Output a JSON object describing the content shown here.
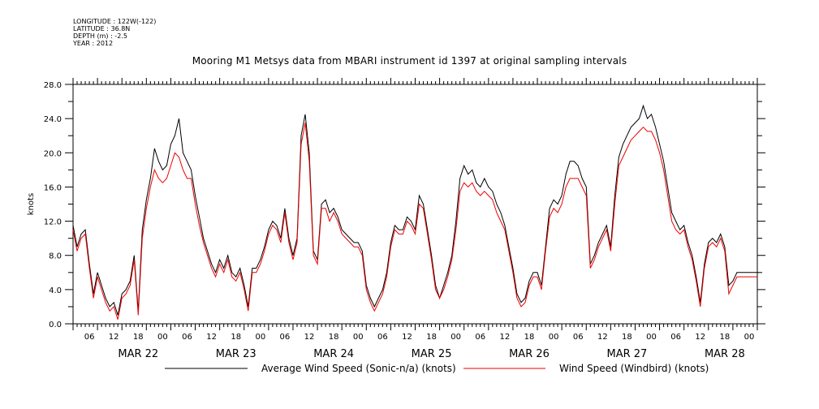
{
  "meta": {
    "longitude": "LONGITUDE : 122W(-122)",
    "latitude": "LATITUDE : 36.8N",
    "depth": "DEPTH (m) : -2.5",
    "year": "YEAR : 2012"
  },
  "chart_data": {
    "type": "line",
    "title": "Mooring M1 Metsys data from MBARI instrument id 1397 at original sampling intervals",
    "ylabel": "knots",
    "xlabel": "",
    "ylim": [
      0,
      28
    ],
    "yticks": [
      "0.0",
      "4.0",
      "8.0",
      "12.0",
      "16.0",
      "20.0",
      "24.0",
      "28.0"
    ],
    "xlim_hours": [
      0,
      168
    ],
    "hour_ticks": [
      "06",
      "12",
      "18",
      "00",
      "06",
      "12",
      "18",
      "00",
      "06",
      "12",
      "18",
      "00",
      "06",
      "12",
      "18",
      "00",
      "06",
      "12",
      "18",
      "00",
      "06",
      "12",
      "18",
      "00",
      "06",
      "12",
      "18",
      "00"
    ],
    "day_labels": [
      "MAR 22",
      "MAR 23",
      "MAR 24",
      "MAR 25",
      "MAR 26",
      "MAR 27",
      "MAR 28"
    ],
    "grid": false,
    "legend_position": "bottom",
    "series": [
      {
        "name": "Average Wind Speed (Sonic-n/a) (knots)",
        "color": "#000000",
        "x": [
          0,
          1,
          2,
          3,
          4,
          5,
          6,
          7,
          8,
          9,
          10,
          11,
          12,
          13,
          14,
          15,
          16,
          17,
          18,
          19,
          20,
          21,
          22,
          23,
          24,
          25,
          26,
          27,
          28,
          29,
          30,
          31,
          32,
          33,
          34,
          35,
          36,
          37,
          38,
          39,
          40,
          41,
          42,
          43,
          44,
          45,
          46,
          47,
          48,
          49,
          50,
          51,
          52,
          53,
          54,
          55,
          56,
          57,
          58,
          59,
          60,
          61,
          62,
          63,
          64,
          65,
          66,
          67,
          68,
          69,
          70,
          71,
          72,
          73,
          74,
          75,
          76,
          77,
          78,
          79,
          80,
          81,
          82,
          83,
          84,
          85,
          86,
          87,
          88,
          89,
          90,
          91,
          92,
          93,
          94,
          95,
          96,
          97,
          98,
          99,
          100,
          101,
          102,
          103,
          104,
          105,
          106,
          107,
          108,
          109,
          110,
          111,
          112,
          113,
          114,
          115,
          116,
          117,
          118,
          119,
          120,
          121,
          122,
          123,
          124,
          125,
          126,
          127,
          128,
          129,
          130,
          131,
          132,
          133,
          134,
          135,
          136,
          137,
          138,
          139,
          140,
          141,
          142,
          143,
          144,
          145,
          146,
          147,
          148,
          149,
          150,
          151,
          152,
          153,
          154,
          155,
          156,
          157,
          158,
          159,
          160,
          161,
          162,
          163,
          164,
          165,
          166,
          167,
          168
        ],
        "values": [
          11.5,
          9.0,
          10.5,
          11.0,
          7.0,
          3.5,
          6.0,
          4.5,
          3.0,
          2.0,
          2.5,
          1.0,
          3.5,
          4.0,
          5.0,
          8.0,
          1.5,
          11.0,
          14.5,
          17.0,
          20.5,
          19.0,
          18.0,
          18.5,
          21.0,
          22.0,
          24.0,
          20.0,
          19.0,
          18.0,
          15.0,
          12.5,
          10.0,
          8.5,
          7.0,
          6.0,
          7.5,
          6.5,
          8.0,
          6.0,
          5.5,
          6.5,
          4.5,
          2.0,
          6.5,
          6.5,
          7.5,
          9.0,
          11.0,
          12.0,
          11.5,
          10.0,
          13.5,
          10.0,
          8.0,
          10.0,
          22.0,
          24.5,
          20.0,
          8.5,
          7.5,
          14.0,
          14.5,
          13.0,
          13.5,
          12.5,
          11.0,
          10.5,
          10.0,
          9.5,
          9.5,
          8.5,
          4.5,
          3.0,
          2.0,
          3.0,
          4.0,
          6.0,
          9.5,
          11.5,
          11.0,
          11.0,
          12.5,
          12.0,
          11.0,
          15.0,
          14.0,
          11.0,
          8.0,
          4.5,
          3.0,
          4.5,
          6.0,
          8.0,
          12.0,
          17.0,
          18.5,
          17.5,
          18.0,
          16.5,
          16.0,
          17.0,
          16.0,
          15.5,
          14.0,
          13.0,
          11.5,
          9.0,
          6.5,
          3.5,
          2.5,
          3.0,
          5.0,
          6.0,
          6.0,
          4.5,
          9.0,
          13.5,
          14.5,
          14.0,
          15.0,
          17.5,
          19.0,
          19.0,
          18.5,
          17.0,
          16.0,
          7.0,
          8.0,
          9.5,
          10.5,
          11.5,
          9.0,
          15.0,
          19.5,
          21.0,
          22.0,
          23.0,
          23.5,
          24.0,
          25.5,
          24.0,
          24.5,
          23.0,
          21.0,
          19.0,
          16.0,
          13.0,
          12.0,
          11.0,
          11.5,
          9.5,
          8.0,
          5.5,
          2.5,
          7.0,
          9.5,
          10.0,
          9.5,
          10.5,
          9.0,
          4.5,
          5.0,
          6.0,
          6.0,
          6.0,
          6.0,
          6.0,
          6.0
        ]
      },
      {
        "name": "Wind Speed (Windbird) (knots)",
        "color": "#ee0000",
        "x": [
          0,
          1,
          2,
          3,
          4,
          5,
          6,
          7,
          8,
          9,
          10,
          11,
          12,
          13,
          14,
          15,
          16,
          17,
          18,
          19,
          20,
          21,
          22,
          23,
          24,
          25,
          26,
          27,
          28,
          29,
          30,
          31,
          32,
          33,
          34,
          35,
          36,
          37,
          38,
          39,
          40,
          41,
          42,
          43,
          44,
          45,
          46,
          47,
          48,
          49,
          50,
          51,
          52,
          53,
          54,
          55,
          56,
          57,
          58,
          59,
          60,
          61,
          62,
          63,
          64,
          65,
          66,
          67,
          68,
          69,
          70,
          71,
          72,
          73,
          74,
          75,
          76,
          77,
          78,
          79,
          80,
          81,
          82,
          83,
          84,
          85,
          86,
          87,
          88,
          89,
          90,
          91,
          92,
          93,
          94,
          95,
          96,
          97,
          98,
          99,
          100,
          101,
          102,
          103,
          104,
          105,
          106,
          107,
          108,
          109,
          110,
          111,
          112,
          113,
          114,
          115,
          116,
          117,
          118,
          119,
          120,
          121,
          122,
          123,
          124,
          125,
          126,
          127,
          128,
          129,
          130,
          131,
          132,
          133,
          134,
          135,
          136,
          137,
          138,
          139,
          140,
          141,
          142,
          143,
          144,
          145,
          146,
          147,
          148,
          149,
          150,
          151,
          152,
          153,
          154,
          155,
          156,
          157,
          158,
          159,
          160,
          161,
          162,
          163,
          164,
          165,
          166,
          167,
          168
        ],
        "values": [
          11.0,
          8.5,
          10.0,
          10.5,
          6.5,
          3.0,
          5.5,
          4.0,
          2.5,
          1.5,
          2.0,
          0.5,
          3.0,
          3.5,
          4.5,
          7.5,
          1.0,
          10.0,
          13.5,
          16.0,
          18.0,
          17.0,
          16.5,
          17.0,
          18.5,
          20.0,
          19.5,
          18.0,
          17.0,
          17.0,
          14.0,
          11.5,
          9.5,
          8.0,
          6.5,
          5.5,
          7.0,
          6.0,
          7.5,
          5.5,
          5.0,
          6.0,
          4.0,
          1.5,
          6.0,
          6.0,
          7.0,
          8.5,
          10.5,
          11.5,
          11.0,
          9.5,
          13.0,
          9.5,
          7.5,
          9.5,
          21.0,
          23.5,
          19.0,
          8.0,
          7.0,
          13.5,
          13.5,
          12.0,
          13.0,
          12.0,
          10.5,
          10.0,
          9.5,
          9.0,
          9.0,
          8.0,
          4.0,
          2.5,
          1.5,
          2.5,
          3.5,
          5.5,
          9.0,
          11.0,
          10.5,
          10.5,
          12.0,
          11.5,
          10.5,
          14.0,
          13.5,
          10.5,
          7.5,
          4.0,
          3.0,
          4.0,
          5.5,
          7.5,
          11.0,
          15.5,
          16.5,
          16.0,
          16.5,
          15.5,
          15.0,
          15.5,
          15.0,
          14.5,
          13.0,
          12.0,
          11.0,
          8.5,
          6.0,
          3.0,
          2.0,
          2.5,
          4.5,
          5.5,
          5.5,
          4.0,
          8.5,
          12.5,
          13.5,
          13.0,
          14.0,
          16.0,
          17.0,
          17.0,
          17.0,
          16.0,
          15.0,
          6.5,
          7.5,
          9.0,
          10.0,
          11.0,
          8.5,
          14.0,
          18.5,
          19.5,
          20.5,
          21.5,
          22.0,
          22.5,
          23.0,
          22.5,
          22.5,
          21.5,
          20.0,
          18.0,
          15.0,
          12.0,
          11.0,
          10.5,
          11.0,
          9.0,
          7.5,
          5.0,
          2.0,
          6.5,
          9.0,
          9.5,
          9.0,
          10.0,
          8.5,
          3.5,
          4.5,
          5.5,
          5.5,
          5.5,
          5.5,
          5.5,
          5.5
        ]
      }
    ]
  }
}
